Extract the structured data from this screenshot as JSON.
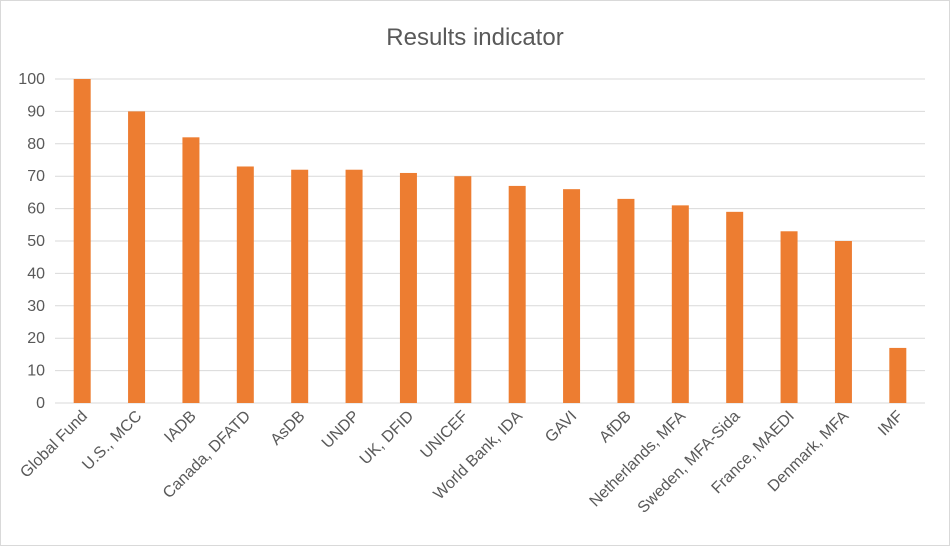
{
  "chart_data": {
    "type": "bar",
    "title": "Results indicator",
    "xlabel": "",
    "ylabel": "",
    "categories": [
      "Global Fund",
      "U.S., MCC",
      "IADB",
      "Canada, DFATD",
      "AsDB",
      "UNDP",
      "UK, DFID",
      "UNICEF",
      "World Bank, IDA",
      "GAVI",
      "AfDB",
      "Netherlands, MFA",
      "Sweden, MFA-Sida",
      "France, MAEDI",
      "Denmark, MFA",
      "IMF"
    ],
    "values": [
      100,
      90,
      82,
      73,
      72,
      72,
      71,
      70,
      67,
      66,
      63,
      61,
      59,
      53,
      50,
      17
    ],
    "ylim": [
      0,
      100
    ],
    "yticks": [
      0,
      10,
      20,
      30,
      40,
      50,
      60,
      70,
      80,
      90,
      100
    ],
    "grid": true,
    "legend": "none",
    "colors": {
      "bar": "#ED7D31",
      "grid": "#D9D9D9",
      "text": "#595959"
    }
  }
}
